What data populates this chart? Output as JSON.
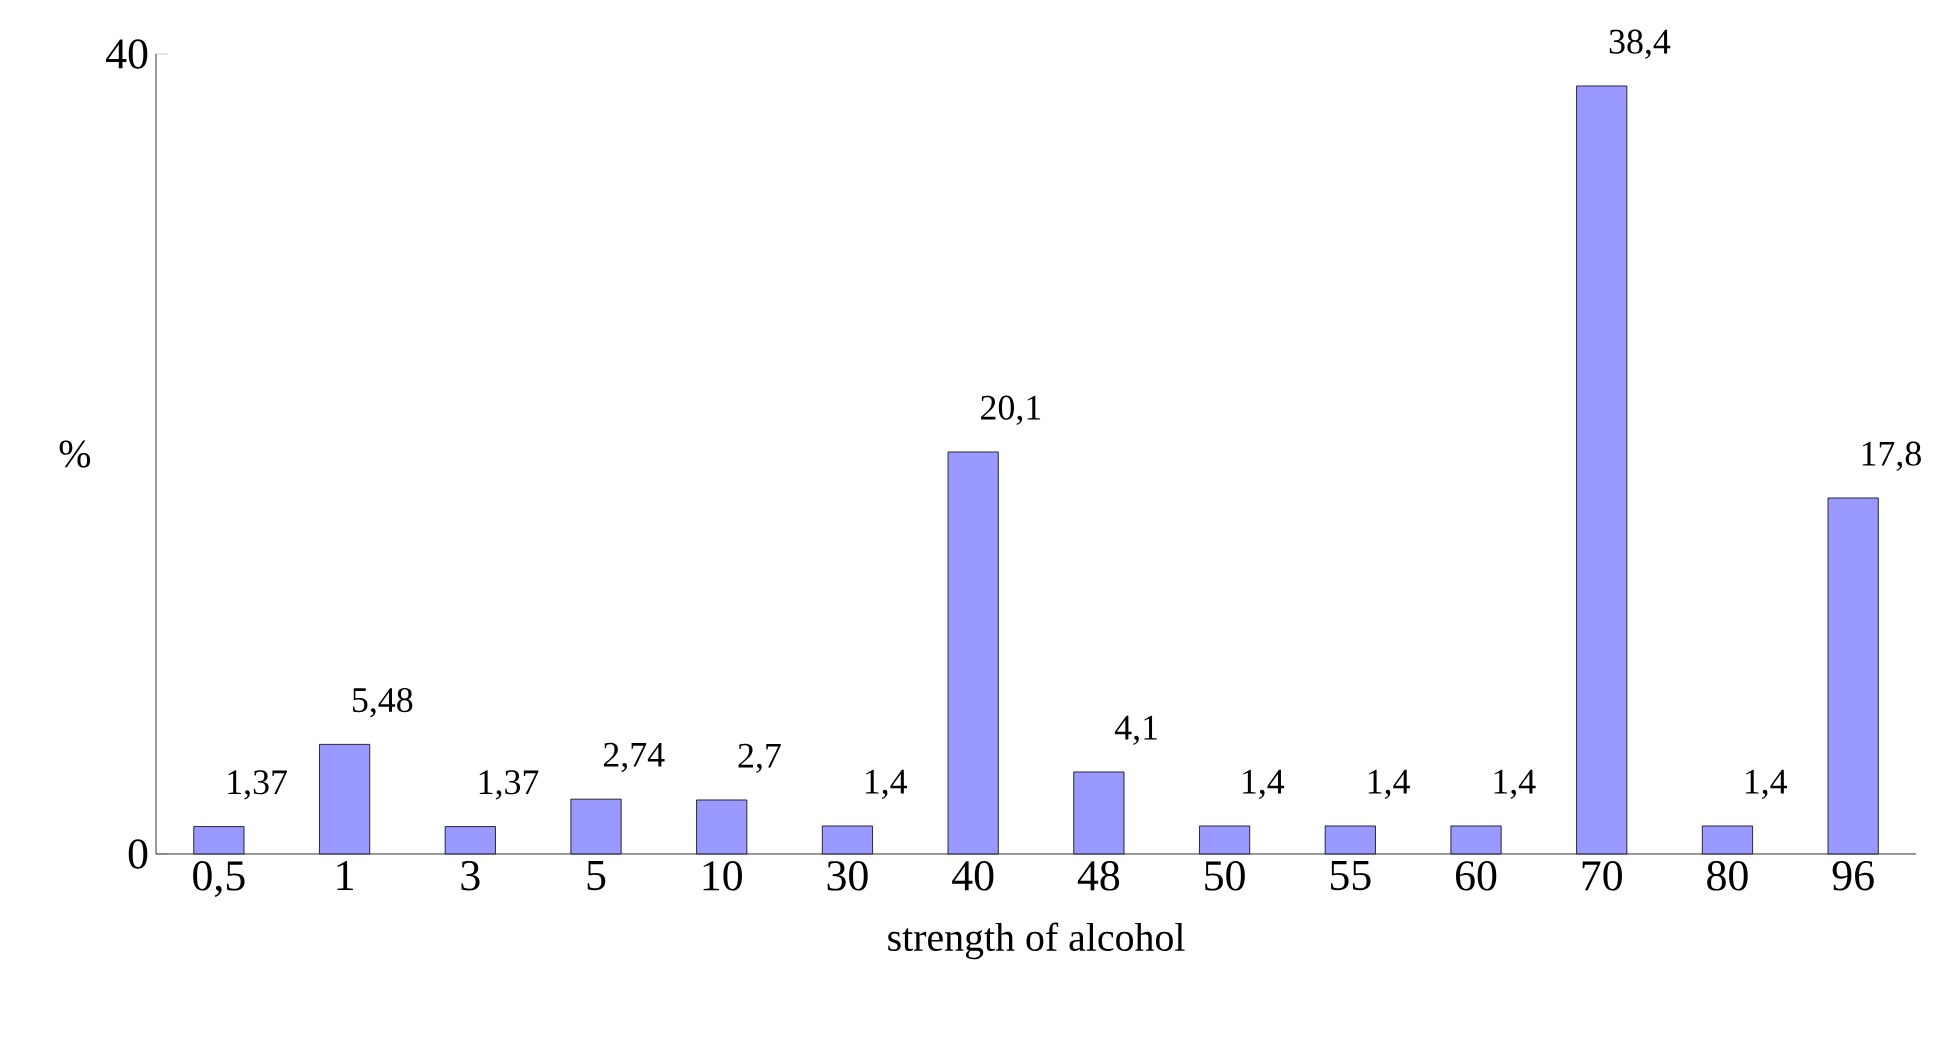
{
  "chart_data": {
    "type": "bar",
    "xlabel": "strength of alcohol",
    "ylabel": "%",
    "categories": [
      "0,5",
      "1",
      "3",
      "5",
      "10",
      "30",
      "40",
      "48",
      "50",
      "55",
      "60",
      "70",
      "80",
      "96"
    ],
    "values": [
      1.37,
      5.48,
      1.37,
      2.74,
      2.7,
      1.4,
      20.1,
      4.1,
      1.4,
      1.4,
      1.4,
      38.4,
      1.4,
      17.8
    ],
    "value_labels": [
      "1,37",
      "5,48",
      "1,37",
      "2,74",
      "2,7",
      "1,4",
      "20,1",
      "4,1",
      "1,4",
      "1,4",
      "1,4",
      "38,4",
      "1,4",
      "17,8"
    ],
    "color": "#9999ff",
    "ylim": [
      0,
      40
    ],
    "yticks": [
      0,
      40
    ]
  }
}
